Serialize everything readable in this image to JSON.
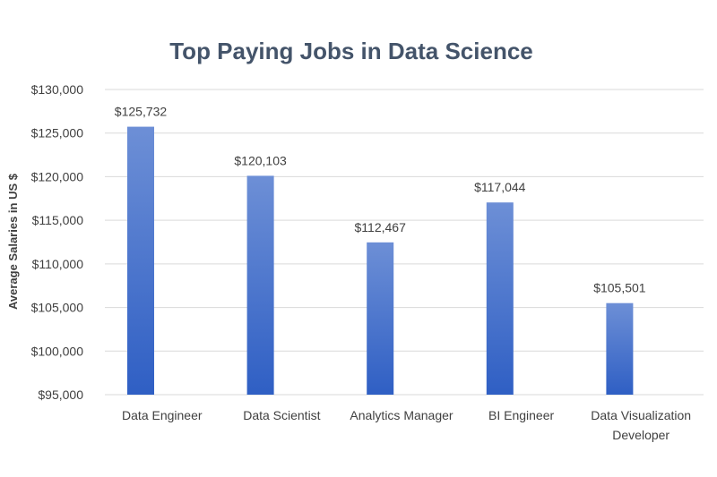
{
  "chart_data": {
    "type": "bar",
    "title": "Top Paying Jobs in Data Science",
    "xlabel": "",
    "ylabel": "Average Salaries in US $",
    "categories": [
      [
        "Data Engineer"
      ],
      [
        "Data Scientist"
      ],
      [
        "Analytics Manager"
      ],
      [
        "BI Engineer"
      ],
      [
        "Data Visualization",
        "Developer"
      ]
    ],
    "values": [
      125732,
      120103,
      112467,
      117044,
      105501
    ],
    "data_labels": [
      "$125,732",
      "$120,103",
      "$112,467",
      "$117,044",
      "$105,501"
    ],
    "yticks": [
      95000,
      100000,
      105000,
      110000,
      115000,
      120000,
      125000,
      130000
    ],
    "ytick_labels": [
      "$95,000",
      "$100,000",
      "$105,000",
      "$110,000",
      "$115,000",
      "$120,000",
      "$125,000",
      "$130,000"
    ],
    "ylim": [
      95000,
      130000
    ],
    "grid": true,
    "legend": "none",
    "colors": {
      "bar_top": "#6d8fd6",
      "bar_bottom": "#2f5fc4",
      "title": "#44546a"
    }
  }
}
